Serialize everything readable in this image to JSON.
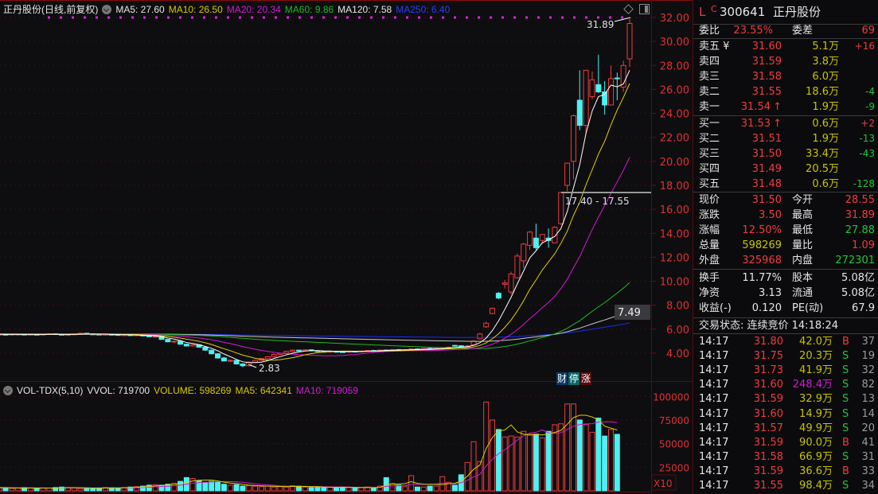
{
  "header": {
    "title": "正丹股份(日线,前复权)",
    "ma5": "MA5: 27.60",
    "ma10": "MA10: 26.50",
    "ma20": "MA20: 20.34",
    "ma60": "MA60: 9.86",
    "ma120": "MA120: 7.58",
    "ma250": "MA250: 6.40"
  },
  "vol_header": {
    "name": "VOL-TDX(5,10)",
    "vvol": "VVOL: 719700",
    "volume": "VOLUME: 598269",
    "ma5": "MA5: 642341",
    "ma10": "MA10: 719059"
  },
  "annotations": {
    "high": "31.89",
    "low": "2.83",
    "range": "17.40 - 17.55",
    "current_axis": "7.49",
    "vol_unit": "X10",
    "badges": [
      "财",
      "停",
      "涨"
    ]
  },
  "colors": {
    "up": "#f03c3c",
    "down": "#4ef0f0",
    "ma5": "#ffffff",
    "ma10": "#e0d000",
    "ma20": "#d21ad2",
    "ma60": "#22b822",
    "ma120": "#c8c8c8",
    "ma250": "#1a2cf0"
  },
  "chart_data": [
    {
      "type": "candlestick",
      "title": "正丹股份(日线,前复权)",
      "y_ticks": [
        "4.00",
        "6.00",
        "8.00",
        "10.00",
        "12.00",
        "14.00",
        "16.00",
        "18.00",
        "20.00",
        "22.00",
        "24.00",
        "26.00",
        "28.00",
        "30.00",
        "32.00"
      ],
      "ylim": [
        4,
        32
      ],
      "ohlc": [
        [
          5.55,
          5.62,
          5.5,
          5.58
        ],
        [
          5.58,
          5.6,
          5.52,
          5.55
        ],
        [
          5.55,
          5.6,
          5.5,
          5.57
        ],
        [
          5.57,
          5.62,
          5.52,
          5.54
        ],
        [
          5.54,
          5.6,
          5.5,
          5.58
        ],
        [
          5.55,
          5.62,
          5.5,
          5.58
        ],
        [
          5.58,
          5.6,
          5.52,
          5.55
        ],
        [
          5.55,
          5.6,
          5.5,
          5.57
        ],
        [
          5.57,
          5.62,
          5.52,
          5.54
        ],
        [
          5.54,
          5.6,
          5.5,
          5.58
        ],
        [
          5.58,
          5.66,
          5.55,
          5.62
        ],
        [
          5.62,
          5.65,
          5.55,
          5.57
        ],
        [
          5.57,
          5.6,
          5.5,
          5.52
        ],
        [
          5.52,
          5.58,
          5.48,
          5.55
        ],
        [
          5.55,
          5.62,
          5.52,
          5.6
        ],
        [
          5.6,
          5.7,
          5.55,
          5.66
        ],
        [
          5.66,
          5.7,
          5.58,
          5.6
        ],
        [
          5.6,
          5.66,
          5.55,
          5.58
        ],
        [
          5.58,
          5.62,
          5.5,
          5.54
        ],
        [
          5.54,
          5.6,
          5.5,
          5.57
        ],
        [
          5.57,
          5.62,
          5.52,
          5.55
        ],
        [
          5.55,
          5.6,
          5.48,
          5.5
        ],
        [
          5.5,
          5.56,
          5.45,
          5.53
        ],
        [
          5.53,
          5.58,
          5.47,
          5.49
        ],
        [
          5.49,
          5.55,
          5.44,
          5.52
        ],
        [
          5.52,
          5.56,
          5.4,
          5.43
        ],
        [
          5.43,
          5.5,
          5.35,
          5.38
        ],
        [
          5.38,
          5.45,
          5.3,
          5.4
        ],
        [
          5.4,
          5.42,
          5.1,
          5.15
        ],
        [
          5.15,
          5.2,
          4.9,
          4.95
        ],
        [
          4.95,
          5.05,
          4.85,
          5.0
        ],
        [
          5.0,
          5.02,
          4.7,
          4.75
        ],
        [
          4.75,
          4.8,
          4.55,
          4.6
        ],
        [
          4.6,
          4.75,
          4.55,
          4.7
        ],
        [
          4.7,
          4.72,
          4.45,
          4.5
        ],
        [
          4.5,
          4.6,
          4.2,
          4.25
        ],
        [
          4.25,
          4.3,
          3.9,
          3.95
        ],
        [
          3.95,
          4.0,
          3.55,
          3.6
        ],
        [
          3.6,
          3.7,
          3.3,
          3.35
        ],
        [
          3.35,
          3.5,
          3.25,
          3.4
        ],
        [
          3.4,
          3.45,
          3.05,
          3.1
        ],
        [
          3.1,
          3.15,
          2.83,
          2.95
        ],
        [
          2.95,
          3.3,
          2.9,
          3.25
        ],
        [
          3.25,
          3.45,
          3.2,
          3.4
        ],
        [
          3.4,
          3.6,
          3.35,
          3.55
        ],
        [
          3.55,
          3.75,
          3.5,
          3.7
        ],
        [
          3.7,
          3.95,
          3.65,
          3.9
        ],
        [
          3.9,
          4.05,
          3.85,
          4.0
        ],
        [
          4.0,
          4.2,
          3.95,
          4.15
        ],
        [
          4.15,
          4.3,
          4.1,
          4.25
        ],
        [
          4.25,
          4.3,
          4.15,
          4.2
        ],
        [
          4.2,
          4.3,
          4.15,
          4.28
        ],
        [
          4.28,
          4.32,
          4.15,
          4.2
        ],
        [
          4.2,
          4.25,
          4.1,
          4.15
        ],
        [
          4.15,
          4.2,
          4.05,
          4.1
        ],
        [
          4.1,
          4.18,
          4.05,
          4.15
        ],
        [
          4.15,
          4.2,
          4.08,
          4.12
        ],
        [
          4.12,
          4.18,
          4.05,
          4.1
        ],
        [
          4.1,
          4.2,
          4.05,
          4.16
        ],
        [
          4.16,
          4.2,
          4.1,
          4.14
        ],
        [
          4.14,
          4.2,
          4.08,
          4.18
        ],
        [
          4.18,
          4.25,
          4.12,
          4.22
        ],
        [
          4.22,
          4.28,
          4.15,
          4.2
        ],
        [
          4.2,
          4.3,
          4.15,
          4.26
        ],
        [
          4.26,
          4.3,
          4.2,
          4.24
        ],
        [
          4.24,
          4.32,
          4.2,
          4.3
        ],
        [
          4.3,
          4.35,
          4.22,
          4.25
        ],
        [
          4.25,
          4.32,
          4.2,
          4.3
        ],
        [
          4.3,
          4.38,
          4.25,
          4.35
        ],
        [
          4.35,
          4.4,
          4.28,
          4.3
        ],
        [
          4.3,
          4.42,
          4.28,
          4.4
        ],
        [
          4.4,
          4.45,
          4.32,
          4.35
        ],
        [
          4.35,
          4.45,
          4.3,
          4.42
        ],
        [
          4.42,
          4.48,
          4.35,
          4.46
        ],
        [
          4.46,
          4.55,
          4.4,
          4.5
        ],
        [
          4.65,
          4.7,
          4.55,
          4.6
        ],
        [
          4.62,
          4.66,
          4.5,
          4.55
        ],
        [
          4.55,
          4.7,
          4.5,
          4.6
        ],
        [
          4.7,
          5.1,
          4.65,
          5.0
        ],
        [
          5.2,
          5.7,
          5.15,
          5.6
        ],
        [
          6.2,
          6.6,
          6.1,
          6.5
        ],
        [
          7.3,
          7.8,
          7.25,
          7.75
        ],
        [
          9.0,
          9.1,
          8.5,
          8.6
        ],
        [
          9.75,
          10.1,
          9.4,
          9.85
        ],
        [
          9.1,
          10.8,
          8.9,
          10.6
        ],
        [
          10.3,
          12.3,
          10.2,
          12.1
        ],
        [
          11.7,
          13.2,
          11.1,
          13.1
        ],
        [
          13.0,
          14.2,
          12.6,
          14.1
        ],
        [
          13.6,
          14.8,
          12.6,
          12.8
        ],
        [
          13.4,
          13.9,
          13.1,
          13.9
        ],
        [
          13.6,
          14.4,
          12.8,
          13.4
        ],
        [
          13.2,
          14.6,
          13.2,
          14.5
        ],
        [
          14.8,
          17.45,
          14.7,
          17.4
        ],
        [
          18.0,
          19.9,
          17.5,
          19.85
        ],
        [
          20.0,
          23.9,
          18.5,
          23.8
        ],
        [
          25.1,
          27.6,
          22.6,
          23.0
        ],
        [
          23.0,
          27.6,
          22.2,
          27.6
        ],
        [
          25.4,
          27.5,
          25.2,
          26.8
        ],
        [
          26.4,
          28.9,
          25.7,
          25.8
        ],
        [
          25.8,
          26.7,
          23.9,
          24.7
        ],
        [
          24.7,
          28.0,
          24.7,
          26.9
        ],
        [
          26.95,
          27.4,
          25.1,
          26.9
        ],
        [
          26.2,
          28.4,
          25.8,
          28.0
        ],
        [
          28.55,
          31.89,
          27.88,
          31.5
        ]
      ]
    },
    {
      "type": "bar",
      "title": "VOL-TDX(5,10)",
      "y_ticks": [
        "25000",
        "50000",
        "75000",
        "100000"
      ],
      "ylim": [
        0,
        100000
      ],
      "unit": "X10",
      "volume": [
        4000,
        3500,
        3000,
        3000,
        2500,
        3000,
        3500,
        3000,
        2500,
        3000,
        3000,
        3500,
        4000,
        3500,
        3000,
        2500,
        3000,
        2800,
        3000,
        3500,
        3200,
        3000,
        3500,
        4000,
        4500,
        5000,
        6000,
        6500,
        6000,
        7000,
        8000,
        10000,
        14000,
        13000,
        11000,
        9000,
        10000,
        9000,
        7000,
        6000,
        6500,
        5000,
        5500,
        5000,
        4500,
        5000,
        4000,
        4500,
        4000,
        5500,
        5000,
        4000,
        3500,
        4000,
        3500,
        4000,
        3500,
        4000,
        3500,
        3000,
        3500,
        4000,
        3000,
        5000,
        14000,
        8000,
        6000,
        5000,
        16000,
        4000,
        4000,
        5000,
        5000,
        15000,
        9000,
        6000,
        17000,
        30000,
        52000,
        31000,
        94000,
        75000,
        65000,
        57000,
        58000,
        57000,
        63000,
        60000,
        60000,
        56000,
        63000,
        70000,
        71000,
        92000,
        92000,
        75000,
        70000,
        62000,
        77000,
        58000,
        65000,
        59827
      ]
    }
  ],
  "panel": {
    "flag": "L",
    "c": "C",
    "code": "300641",
    "name": "正丹股份",
    "wb": {
      "label": "委比",
      "value": "23.55%",
      "label2": "委差",
      "value2": "69"
    },
    "sells": [
      {
        "label": "卖五 ¥",
        "price": "31.60",
        "vol": "5.1万",
        "chg": "+16"
      },
      {
        "label": "卖四",
        "price": "31.59",
        "vol": "3.8万",
        "chg": ""
      },
      {
        "label": "卖三",
        "price": "31.58",
        "vol": "6.0万",
        "chg": ""
      },
      {
        "label": "卖二",
        "price": "31.55",
        "vol": "18.6万",
        "chg": "-4"
      },
      {
        "label": "卖一",
        "price": "31.54",
        "arrow": "↑",
        "vol": "1.9万",
        "chg": "-9"
      }
    ],
    "buys": [
      {
        "label": "买一",
        "price": "31.53",
        "arrow": "↑",
        "vol": "0.6万",
        "chg": "+2"
      },
      {
        "label": "买二",
        "price": "31.51",
        "vol": "1.9万",
        "chg": "-13"
      },
      {
        "label": "买三",
        "price": "31.50",
        "vol": "33.4万",
        "chg": "-43"
      },
      {
        "label": "买四",
        "price": "31.49",
        "vol": "20.5万",
        "chg": ""
      },
      {
        "label": "买五",
        "price": "31.48",
        "vol": "0.6万",
        "chg": "-128"
      }
    ],
    "stats": [
      {
        "l1": "现价",
        "v1": "31.50",
        "c1": "r",
        "l2": "今开",
        "v2": "28.55",
        "c2": "r"
      },
      {
        "l1": "涨跌",
        "v1": "3.50",
        "c1": "r",
        "l2": "最高",
        "v2": "31.89",
        "c2": "r"
      },
      {
        "l1": "涨幅",
        "v1": "12.50%",
        "c1": "r",
        "l2": "最低",
        "v2": "27.88",
        "c2": "g"
      },
      {
        "l1": "总量",
        "v1": "598269",
        "c1": "y",
        "l2": "量比",
        "v2": "1.09",
        "c2": "r"
      },
      {
        "l1": "外盘",
        "v1": "325968",
        "c1": "r",
        "l2": "内盘",
        "v2": "272301",
        "c2": "g"
      }
    ],
    "stats2": [
      {
        "l1": "换手",
        "v1": "11.77%",
        "l2": "股本",
        "v2": "5.08亿"
      },
      {
        "l1": "净资",
        "v1": "3.13",
        "l2": "流通",
        "v2": "5.08亿"
      },
      {
        "l1": "收益(-)",
        "v1": "0.120",
        "l2": "PE(动)",
        "v2": "67.9"
      }
    ],
    "status": "交易状态: 连续竞价 14:18:24",
    "ticks": [
      {
        "t": "14:17",
        "p": "31.80",
        "v": "42.0万",
        "bs": "B",
        "n": "37"
      },
      {
        "t": "14:17",
        "p": "31.75",
        "v": "20.3万",
        "bs": "S",
        "n": "19"
      },
      {
        "t": "14:17",
        "p": "31.73",
        "v": "41.9万",
        "bs": "S",
        "n": "32"
      },
      {
        "t": "14:17",
        "p": "31.60",
        "v": "248.4万",
        "bs": "S",
        "n": "82",
        "big": true
      },
      {
        "t": "14:17",
        "p": "31.59",
        "v": "32.9万",
        "bs": "S",
        "n": "13"
      },
      {
        "t": "14:17",
        "p": "31.60",
        "v": "14.9万",
        "bs": "S",
        "n": "14"
      },
      {
        "t": "14:17",
        "p": "31.57",
        "v": "49.9万",
        "bs": "S",
        "n": "20"
      },
      {
        "t": "14:17",
        "p": "31.59",
        "v": "90.0万",
        "bs": "B",
        "n": "41"
      },
      {
        "t": "14:17",
        "p": "31.58",
        "v": "66.9万",
        "bs": "S",
        "n": "31"
      },
      {
        "t": "14:17",
        "p": "31.59",
        "v": "36.6万",
        "bs": "B",
        "n": "33"
      },
      {
        "t": "14:17",
        "p": "31.55",
        "v": "98.4万",
        "bs": "S",
        "n": "34"
      }
    ]
  }
}
